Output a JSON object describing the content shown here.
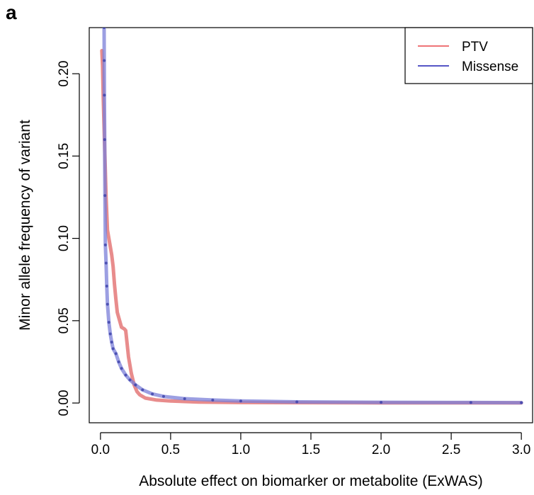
{
  "panel_label": "a",
  "chart_data": {
    "type": "line",
    "title": "",
    "xlabel": "Absolute effect on biomarker or metabolite (ExWAS)",
    "ylabel": "Minor allele frequency of variant",
    "xlim": [
      -0.08,
      3.08
    ],
    "ylim": [
      -0.012,
      0.228
    ],
    "xticks": [
      0.0,
      0.5,
      1.0,
      1.5,
      2.0,
      2.5,
      3.0
    ],
    "xtick_labels": [
      "0.0",
      "0.5",
      "1.0",
      "1.5",
      "2.0",
      "2.5",
      "3.0"
    ],
    "yticks": [
      0.0,
      0.05,
      0.1,
      0.15,
      0.2
    ],
    "ytick_labels": [
      "0.00",
      "0.05",
      "0.10",
      "0.15",
      "0.20"
    ],
    "grid": false,
    "legend_position": "top-right",
    "series": [
      {
        "name": "PTV",
        "color": "#e06666",
        "legend_color": "#e8474a",
        "x": [
          0.01,
          0.015,
          0.02,
          0.03,
          0.04,
          0.05,
          0.06,
          0.07,
          0.08,
          0.09,
          0.1,
          0.11,
          0.12,
          0.13,
          0.15,
          0.17,
          0.18,
          0.19,
          0.2,
          0.22,
          0.24,
          0.26,
          0.28,
          0.32,
          0.4,
          0.5,
          0.7,
          1.0,
          1.5,
          2.0,
          2.5,
          3.0
        ],
        "y": [
          0.214,
          0.205,
          0.185,
          0.155,
          0.125,
          0.105,
          0.1,
          0.095,
          0.09,
          0.083,
          0.072,
          0.063,
          0.055,
          0.052,
          0.046,
          0.045,
          0.044,
          0.036,
          0.028,
          0.018,
          0.011,
          0.007,
          0.005,
          0.003,
          0.0018,
          0.0012,
          0.0006,
          0.0003,
          0.0002,
          0.0001,
          0.0001,
          0.0001
        ]
      },
      {
        "name": "Missense",
        "color": "#7b7fd8",
        "legend_color": "#1f1fb4",
        "x": [
          0.025,
          0.026,
          0.027,
          0.028,
          0.03,
          0.032,
          0.035,
          0.04,
          0.045,
          0.05,
          0.06,
          0.07,
          0.08,
          0.09,
          0.11,
          0.13,
          0.15,
          0.18,
          0.21,
          0.25,
          0.3,
          0.37,
          0.45,
          0.6,
          0.8,
          1.0,
          1.4,
          2.0,
          2.64,
          3.0
        ],
        "y": [
          0.235,
          0.228,
          0.208,
          0.187,
          0.16,
          0.126,
          0.096,
          0.085,
          0.071,
          0.06,
          0.049,
          0.042,
          0.037,
          0.033,
          0.03,
          0.025,
          0.021,
          0.017,
          0.014,
          0.011,
          0.008,
          0.0055,
          0.004,
          0.0026,
          0.0018,
          0.0012,
          0.0007,
          0.0004,
          0.0003,
          0.0002
        ]
      }
    ]
  }
}
